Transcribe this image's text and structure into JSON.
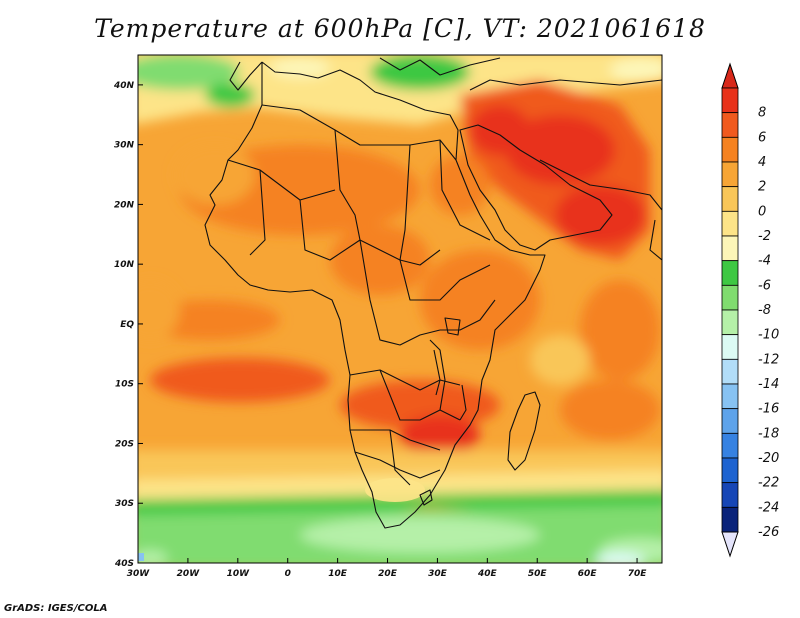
{
  "title": "Temperature at 600hPa [C], VT: 2021061618",
  "credit": "GrADS: IGES/COLA",
  "map": {
    "lon_range": [
      -30,
      75
    ],
    "lat_range": [
      -40,
      45
    ],
    "lon_ticks": [
      {
        "value": -30,
        "label": "30W"
      },
      {
        "value": -20,
        "label": "20W"
      },
      {
        "value": -10,
        "label": "10W"
      },
      {
        "value": 0,
        "label": "0"
      },
      {
        "value": 10,
        "label": "10E"
      },
      {
        "value": 20,
        "label": "20E"
      },
      {
        "value": 30,
        "label": "30E"
      },
      {
        "value": 40,
        "label": "40E"
      },
      {
        "value": 50,
        "label": "50E"
      },
      {
        "value": 60,
        "label": "60E"
      },
      {
        "value": 70,
        "label": "70E"
      }
    ],
    "lat_ticks": [
      {
        "value": 40,
        "label": "40N"
      },
      {
        "value": 30,
        "label": "30N"
      },
      {
        "value": 20,
        "label": "20N"
      },
      {
        "value": 10,
        "label": "10N"
      },
      {
        "value": 0,
        "label": "EQ"
      },
      {
        "value": -10,
        "label": "10S"
      },
      {
        "value": -20,
        "label": "20S"
      },
      {
        "value": -30,
        "label": "30S"
      },
      {
        "value": -40,
        "label": "40S"
      }
    ]
  },
  "colorbar": {
    "levels": [
      {
        "label": "8",
        "color": "#e8321a"
      },
      {
        "label": "6",
        "color": "#f05a1e"
      },
      {
        "label": "4",
        "color": "#f58220"
      },
      {
        "label": "2",
        "color": "#f7a535"
      },
      {
        "label": "0",
        "color": "#f9c658"
      },
      {
        "label": "-2",
        "color": "#fde488"
      },
      {
        "label": "-4",
        "color": "#fdf6b8"
      },
      {
        "label": "-6",
        "color": "#3ec843"
      },
      {
        "label": "-8",
        "color": "#80dc6f"
      },
      {
        "label": "-10",
        "color": "#b5f0a8"
      },
      {
        "label": "-12",
        "color": "#dcfbf4"
      },
      {
        "label": "-14",
        "color": "#b2ddf8"
      },
      {
        "label": "-16",
        "color": "#87c2f2"
      },
      {
        "label": "-18",
        "color": "#5ea3ea"
      },
      {
        "label": "-20",
        "color": "#3682e2"
      },
      {
        "label": "-22",
        "color": "#1d63d0"
      },
      {
        "label": "-24",
        "color": "#1646b6"
      },
      {
        "label": "-26",
        "color": "#0a237a"
      }
    ],
    "top_color": "#d8281a",
    "bottom_color": "#e4e4fb"
  }
}
